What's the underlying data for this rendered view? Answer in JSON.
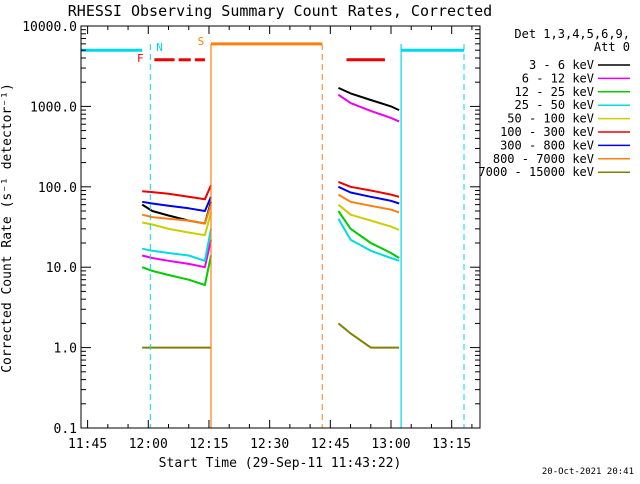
{
  "chart_data": {
    "type": "line",
    "title": "RHESSI Observing Summary Count Rates, Corrected",
    "xlabel": "Start Time (29-Sep-11 11:43:22)",
    "ylabel": "Corrected Count Rate (s⁻¹ detector⁻¹)",
    "ylog": true,
    "ylim": [
      0.1,
      10000
    ],
    "xlim": [
      "11:43:22",
      "13:22:00"
    ],
    "x_ticks": [
      "11:45",
      "12:00",
      "12:15",
      "12:30",
      "12:45",
      "13:00",
      "13:15"
    ],
    "y_ticks": [
      "0.1",
      "1.0",
      "10.0",
      "100.0",
      "1000.0",
      "10000.0"
    ],
    "legend_title": [
      "Det 1,3,4,5,6,9,",
      "Att 0"
    ],
    "legend_position": "right",
    "footer_timestamp": "20-Oct-2021 20:41",
    "flags": [
      {
        "label": "N",
        "color": "#00d8e8"
      },
      {
        "label": "F",
        "color": "#ee0000"
      },
      {
        "label": "S",
        "color": "#ff7f0e"
      }
    ],
    "series": [
      {
        "name": "3 - 6 keV",
        "color": "#000000",
        "seg1": {
          "t": [
            "11:58:30",
            "12:01",
            "12:05",
            "12:10",
            "12:14",
            "12:15:30"
          ],
          "y": [
            60,
            50,
            44,
            38,
            35,
            65
          ]
        },
        "seg2": {
          "t": [
            "12:47",
            "12:50",
            "12:55",
            "13:00",
            "13:02"
          ],
          "y": [
            1700,
            1450,
            1200,
            1000,
            900
          ]
        }
      },
      {
        "name": "6 - 12 keV",
        "color": "#ee00ee",
        "seg1": {
          "t": [
            "11:58:30",
            "12:01",
            "12:05",
            "12:10",
            "12:14",
            "12:15:30"
          ],
          "y": [
            14,
            13,
            12,
            11,
            10,
            22
          ]
        },
        "seg2": {
          "t": [
            "12:47",
            "12:50",
            "12:55",
            "13:00",
            "13:02"
          ],
          "y": [
            1400,
            1100,
            880,
            720,
            650
          ]
        }
      },
      {
        "name": "12 - 25 keV",
        "color": "#00cc00",
        "seg1": {
          "t": [
            "11:58:30",
            "12:01",
            "12:05",
            "12:10",
            "12:14",
            "12:15:30"
          ],
          "y": [
            10,
            9,
            8,
            7,
            6,
            14
          ]
        },
        "seg2": {
          "t": [
            "12:47",
            "12:50",
            "12:55",
            "13:00",
            "13:02"
          ],
          "y": [
            50,
            30,
            20,
            15,
            13
          ]
        }
      },
      {
        "name": "25 - 50 keV",
        "color": "#00dddd",
        "seg1": {
          "t": [
            "11:58:30",
            "12:01",
            "12:05",
            "12:10",
            "12:14",
            "12:15:30"
          ],
          "y": [
            17,
            16,
            15,
            14,
            12,
            30
          ]
        },
        "seg2": {
          "t": [
            "12:47",
            "12:50",
            "12:55",
            "13:00",
            "13:02"
          ],
          "y": [
            40,
            22,
            16,
            13,
            12
          ]
        }
      },
      {
        "name": "50 - 100 keV",
        "color": "#cccc00",
        "seg1": {
          "t": [
            "11:58:30",
            "12:01",
            "12:05",
            "12:10",
            "12:14",
            "12:15:30"
          ],
          "y": [
            36,
            34,
            30,
            27,
            25,
            48
          ]
        },
        "seg2": {
          "t": [
            "12:47",
            "12:50",
            "12:55",
            "13:00",
            "13:02"
          ],
          "y": [
            60,
            45,
            38,
            32,
            29
          ]
        }
      },
      {
        "name": "100 - 300 keV",
        "color": "#ee0000",
        "seg1": {
          "t": [
            "11:58:30",
            "12:01",
            "12:05",
            "12:10",
            "12:14",
            "12:15:30"
          ],
          "y": [
            88,
            86,
            82,
            75,
            70,
            105
          ]
        },
        "seg2": {
          "t": [
            "12:47",
            "12:50",
            "12:55",
            "13:00",
            "13:02"
          ],
          "y": [
            115,
            100,
            90,
            80,
            75
          ]
        }
      },
      {
        "name": "300 - 800 keV",
        "color": "#0000ee",
        "seg1": {
          "t": [
            "11:58:30",
            "12:01",
            "12:05",
            "12:10",
            "12:14",
            "12:15:30"
          ],
          "y": [
            65,
            62,
            58,
            54,
            50,
            75
          ]
        },
        "seg2": {
          "t": [
            "12:47",
            "12:50",
            "12:55",
            "13:00",
            "13:02"
          ],
          "y": [
            100,
            85,
            75,
            67,
            62
          ]
        }
      },
      {
        "name": "800 - 7000 keV",
        "color": "#ff7f0e",
        "seg1": {
          "t": [
            "11:58:30",
            "12:01",
            "12:05",
            "12:10",
            "12:14",
            "12:15:30"
          ],
          "y": [
            45,
            42,
            40,
            38,
            35,
            60
          ]
        },
        "seg2": {
          "t": [
            "12:47",
            "12:50",
            "12:55",
            "13:00",
            "13:02"
          ],
          "y": [
            80,
            65,
            58,
            52,
            48
          ]
        }
      },
      {
        "name": "7000 - 15000 keV",
        "color": "#808000",
        "seg1": {
          "t": [
            "11:58:30",
            "12:00",
            "12:05",
            "12:10",
            "12:15:30"
          ],
          "y": [
            1,
            1,
            1,
            1,
            1
          ]
        },
        "seg2": {
          "t": [
            "12:47",
            "12:50",
            "12:55",
            "13:00",
            "13:02"
          ],
          "y": [
            2,
            1.5,
            1,
            1,
            1
          ]
        }
      }
    ]
  }
}
